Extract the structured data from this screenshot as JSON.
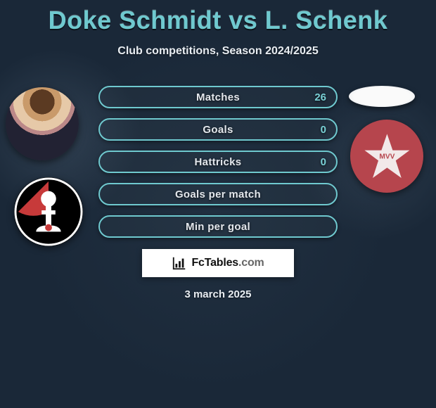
{
  "title": "Doke Schmidt vs L. Schenk",
  "subtitle": "Club competitions, Season 2024/2025",
  "date": "3 march 2025",
  "brand": {
    "name": "FcTables",
    "suffix": ".com"
  },
  "colors": {
    "title": "#6fc9cf",
    "text": "#e8edf2",
    "bar_border": "#6fc9cf",
    "bar_label": "#e3e7ec",
    "bar_value": "#79d0d6",
    "background": "#1a2838",
    "crest_left_bg": "#000000",
    "crest_left_accent": "#c73a3a",
    "crest_right_bg": "#b6454d",
    "crest_right_star": "#f2e9e9",
    "disc_fill": "#fafafa"
  },
  "bar_style": {
    "height": 32,
    "radius": 16,
    "border_width": 2,
    "gap": 14,
    "label_fontsize": 15,
    "value_fontsize": 15
  },
  "stats": [
    {
      "label": "Matches",
      "value": "26"
    },
    {
      "label": "Goals",
      "value": "0"
    },
    {
      "label": "Hattricks",
      "value": "0"
    },
    {
      "label": "Goals per match",
      "value": ""
    },
    {
      "label": "Min per goal",
      "value": ""
    }
  ]
}
